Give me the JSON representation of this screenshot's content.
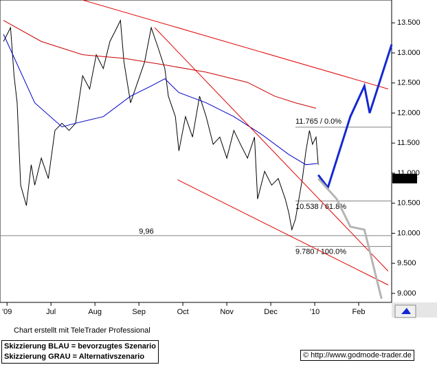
{
  "chart_data": {
    "type": "line",
    "xlim": [
      -0.16,
      8.75
    ],
    "ylim": [
      8.85,
      13.88
    ],
    "xticks": [
      {
        "value": 0,
        "label": "'09"
      },
      {
        "value": 1,
        "label": "Jul"
      },
      {
        "value": 2,
        "label": "Aug"
      },
      {
        "value": 3,
        "label": "Sep"
      },
      {
        "value": 4,
        "label": "Oct"
      },
      {
        "value": 5,
        "label": "Nov"
      },
      {
        "value": 6,
        "label": "Dec"
      },
      {
        "value": 7,
        "label": "'10"
      },
      {
        "value": 8,
        "label": "Feb"
      }
    ],
    "yticks": [
      {
        "value": 9,
        "label": "9.000"
      },
      {
        "value": 9.5,
        "label": "9.500"
      },
      {
        "value": 10,
        "label": "10.000"
      },
      {
        "value": 10.5,
        "label": "10.500"
      },
      {
        "value": 11,
        "label": "11.000"
      },
      {
        "value": 11.5,
        "label": "11.500"
      },
      {
        "value": 12,
        "label": "12.000"
      },
      {
        "value": 12.5,
        "label": "12.500"
      },
      {
        "value": 13,
        "label": "13.000"
      },
      {
        "value": 13.5,
        "label": "13.500"
      }
    ],
    "series": [
      {
        "color": "#000000",
        "x": [
          -0.08,
          0.08,
          0.16,
          0.23,
          0.31,
          0.44,
          0.55,
          0.63,
          0.78,
          0.94,
          1.09,
          1.25,
          1.41,
          1.56,
          1.72,
          1.88,
          2.03,
          2.19,
          2.34,
          2.5,
          2.58,
          2.66,
          2.81,
          2.97,
          3.13,
          3.28,
          3.44,
          3.59,
          3.67,
          3.83,
          3.91,
          4.06,
          4.22,
          4.38,
          4.53,
          4.69,
          4.84,
          5,
          5.16,
          5.31,
          5.47,
          5.63,
          5.7,
          5.86,
          6.02,
          6.17,
          6.33,
          6.41,
          6.48,
          6.56,
          6.64,
          6.72,
          6.8,
          6.88,
          6.95,
          7.03,
          7.08
        ],
        "values": [
          13.19,
          13.42,
          12.62,
          12.17,
          10.8,
          10.46,
          11.14,
          10.8,
          11.25,
          10.91,
          11.71,
          11.83,
          11.71,
          11.83,
          12.62,
          12.4,
          12.97,
          12.74,
          13.19,
          13.42,
          13.54,
          12.85,
          12.17,
          12.51,
          12.85,
          13.42,
          13.08,
          12.74,
          12.28,
          11.94,
          11.37,
          11.94,
          11.6,
          12.28,
          11.94,
          11.48,
          11.6,
          11.25,
          11.71,
          11.48,
          11.25,
          11.6,
          10.57,
          11.03,
          10.8,
          10.91,
          10.57,
          10.34,
          10.06,
          10.23,
          10.57,
          10.91,
          11.37,
          11.71,
          11.48,
          11.6,
          11.14
        ]
      },
      {
        "color": "#0000c8",
        "x": [
          -0.08,
          0.63,
          1.25,
          1.56,
          2.19,
          2.81,
          3.28,
          3.59,
          3.91,
          4.53,
          5.16,
          5.78,
          6.41,
          6.8,
          7.06
        ],
        "values": [
          13.31,
          12.17,
          11.77,
          11.83,
          11.94,
          12.28,
          12.45,
          12.57,
          12.34,
          12.17,
          11.94,
          11.65,
          11.31,
          11.14,
          11.16
        ]
      },
      {
        "color": "#c80000",
        "x": [
          -0.08,
          0.78,
          1.72,
          2.66,
          3.59,
          4.53,
          5.47,
          6.09,
          6.56,
          7.03
        ],
        "values": [
          13.54,
          13.19,
          12.97,
          12.91,
          12.8,
          12.68,
          12.51,
          12.28,
          12.17,
          12.08
        ]
      },
      {
        "color": "#e00000",
        "x": [
          1.72,
          8.67
        ],
        "values": [
          13.88,
          12.4
        ]
      },
      {
        "color": "#e00000",
        "x": [
          3.88,
          8.67
        ],
        "values": [
          10.89,
          9.14
        ]
      },
      {
        "color": "#e00000",
        "x": [
          3.36,
          8.67
        ],
        "values": [
          13.42,
          9.37
        ]
      },
      {
        "color": "#1428d2",
        "x": [
          7.08,
          7.3,
          7.81,
          8.13,
          8.25,
          8.75
        ],
        "values": [
          10.97,
          10.76,
          11.94,
          12.45,
          12.0,
          13.14
        ]
      },
      {
        "color": "#b4b4b4",
        "x": [
          7.08,
          7.5,
          7.81,
          8.13,
          8.52
        ],
        "values": [
          10.91,
          10.57,
          10.11,
          10.06,
          8.91
        ]
      }
    ],
    "levels": [
      {
        "value": 9.96,
        "label": "9,96"
      },
      {
        "value": 11.765,
        "label": "11.765 / 0.0%"
      },
      {
        "value": 10.538,
        "label": "10.538 / 61.8%"
      },
      {
        "value": 9.78,
        "label": "9.780 / 100.0%"
      }
    ],
    "last_price": {
      "value": 10.91,
      "label": "10.910"
    },
    "credit": "Chart erstellt mit TeleTrader Professional",
    "notes": [
      "Skizzierung BLAU = bevorzugtes Szenario",
      "Skizzierung GRAU = Alternativszenario"
    ],
    "source": "© http://www.godmode-trader.de"
  }
}
